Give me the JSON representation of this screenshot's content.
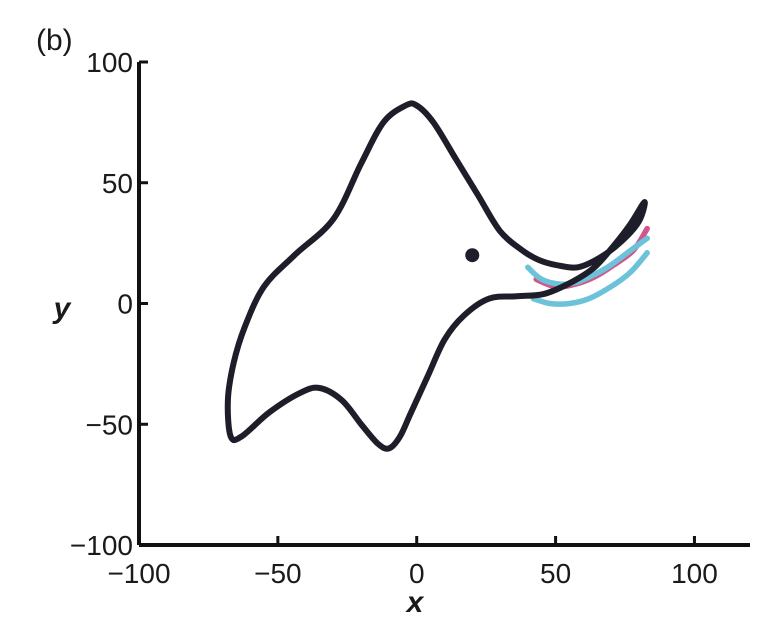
{
  "panel_label": "(b)",
  "chart_data": {
    "type": "line",
    "title": "",
    "xlabel": "x",
    "ylabel": "y",
    "xlim": [
      -100,
      120
    ],
    "ylim": [
      -100,
      100
    ],
    "xticks": [
      -100,
      -50,
      0,
      50,
      100
    ],
    "yticks": [
      -100,
      -50,
      0,
      50,
      100
    ],
    "xtick_labels": [
      "−100",
      "−50",
      "0",
      "50",
      "100"
    ],
    "ytick_labels": [
      "−100",
      "−50",
      "0",
      "50",
      "100"
    ],
    "grid": false,
    "legend": "none",
    "series": [
      {
        "name": "cyan trajectory",
        "color": "#6cc3d9",
        "x": [
          42,
          48,
          55,
          62,
          70,
          77,
          83
        ],
        "y": [
          2,
          0,
          0,
          2,
          7,
          13,
          21
        ]
      },
      {
        "name": "magenta trajectory",
        "color": "#d1568a",
        "x": [
          43,
          50,
          57,
          64,
          71,
          78,
          83
        ],
        "y": [
          10,
          7,
          8,
          11,
          16,
          22,
          31
        ]
      },
      {
        "name": "cyan trajectory (upper)",
        "color": "#6cc3d9",
        "x": [
          40,
          45,
          52,
          58,
          64,
          70,
          77,
          83
        ],
        "y": [
          15,
          10,
          8,
          9,
          12,
          16,
          22,
          27
        ]
      },
      {
        "name": "closed orbit",
        "color": "#1e1e2a",
        "closed": true,
        "x": [
          -4,
          -12,
          -20,
          -30,
          -44,
          -55,
          -62,
          -66,
          -68,
          -67,
          -63,
          -53,
          -42,
          -35,
          -27,
          -20,
          -14,
          -10,
          -6,
          -2,
          4,
          10,
          17,
          26,
          36,
          46,
          56,
          64,
          71,
          77,
          82,
          80,
          74,
          66,
          58,
          50,
          44,
          38,
          30,
          22,
          14,
          6,
          0
        ],
        "y": [
          82,
          75,
          58,
          35,
          20,
          7,
          -10,
          -25,
          -40,
          -55,
          -55,
          -45,
          -37,
          -35,
          -40,
          -50,
          -58,
          -60,
          -55,
          -45,
          -30,
          -15,
          -5,
          2,
          3,
          4,
          9,
          15,
          24,
          33,
          42,
          34,
          26,
          19,
          15,
          16,
          18,
          22,
          30,
          45,
          60,
          75,
          82
        ]
      }
    ],
    "points": [
      {
        "name": "fixed point",
        "x": 20,
        "y": 20,
        "color": "#1e1e2a"
      }
    ]
  }
}
